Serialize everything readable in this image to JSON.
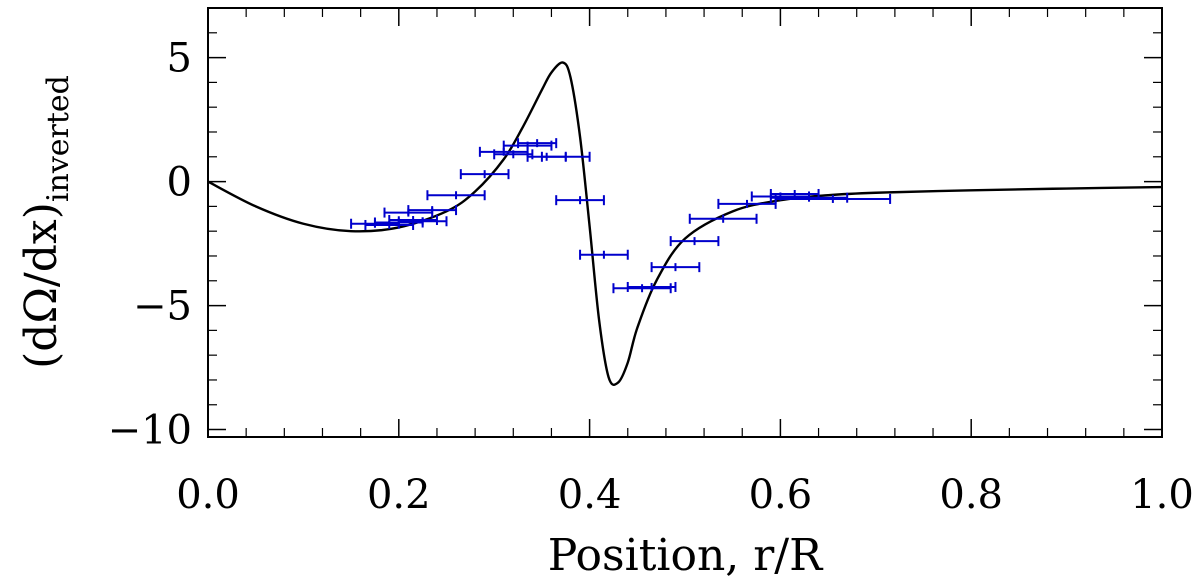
{
  "chart_data": {
    "type": "line",
    "title": "",
    "xlabel": "Position, r/R",
    "ylabel_main": "(dΩ/dx)",
    "ylabel_sub": "inverted",
    "xlim": [
      0.0,
      1.0
    ],
    "ylim": [
      -10.3,
      7.0
    ],
    "x_ticks": [
      0.0,
      0.2,
      0.4,
      0.6,
      0.8,
      1.0
    ],
    "x_tick_labels": [
      "0.0",
      "0.2",
      "0.4",
      "0.6",
      "0.8",
      "1.0"
    ],
    "y_ticks": [
      5,
      0,
      -5,
      -10
    ],
    "y_tick_labels": [
      "5",
      "0",
      "−5",
      "−10"
    ],
    "grid": false,
    "colors": {
      "curve": "#000000",
      "errorbars": "#0000cc",
      "axes": "#000000"
    },
    "series": [
      {
        "type": "line",
        "x": [
          0.0,
          0.05,
          0.1,
          0.15,
          0.2,
          0.25,
          0.28,
          0.31,
          0.33,
          0.35,
          0.36,
          0.372,
          0.38,
          0.39,
          0.4,
          0.41,
          0.42,
          0.43,
          0.44,
          0.45,
          0.47,
          0.5,
          0.55,
          0.6,
          0.65,
          0.7,
          0.8,
          0.9,
          1.0
        ],
        "y": [
          0.0,
          -1.0,
          -1.7,
          -2.0,
          -1.85,
          -1.2,
          -0.4,
          0.9,
          2.2,
          3.7,
          4.4,
          4.8,
          4.2,
          1.8,
          -1.8,
          -5.6,
          -7.9,
          -8.1,
          -7.3,
          -5.9,
          -4.0,
          -2.3,
          -1.2,
          -0.75,
          -0.55,
          -0.45,
          -0.35,
          -0.28,
          -0.22
        ]
      },
      {
        "type": "errorbar",
        "points": [
          {
            "x": 0.175,
            "y": -1.7,
            "xerr": 0.025
          },
          {
            "x": 0.19,
            "y": -1.75,
            "xerr": 0.025
          },
          {
            "x": 0.2,
            "y": -1.65,
            "xerr": 0.025
          },
          {
            "x": 0.215,
            "y": -1.55,
            "xerr": 0.025
          },
          {
            "x": 0.225,
            "y": -1.6,
            "xerr": 0.025
          },
          {
            "x": 0.21,
            "y": -1.25,
            "xerr": 0.025
          },
          {
            "x": 0.235,
            "y": -1.15,
            "xerr": 0.025
          },
          {
            "x": 0.26,
            "y": -0.55,
            "xerr": 0.03
          },
          {
            "x": 0.29,
            "y": 0.3,
            "xerr": 0.025
          },
          {
            "x": 0.31,
            "y": 1.2,
            "xerr": 0.025
          },
          {
            "x": 0.32,
            "y": 1.1,
            "xerr": 0.02
          },
          {
            "x": 0.335,
            "y": 1.45,
            "xerr": 0.025
          },
          {
            "x": 0.345,
            "y": 1.55,
            "xerr": 0.02
          },
          {
            "x": 0.355,
            "y": 1.0,
            "xerr": 0.02
          },
          {
            "x": 0.375,
            "y": 1.0,
            "xerr": 0.025
          },
          {
            "x": 0.39,
            "y": -0.75,
            "xerr": 0.025
          },
          {
            "x": 0.415,
            "y": -2.95,
            "xerr": 0.025
          },
          {
            "x": 0.455,
            "y": -4.3,
            "xerr": 0.03
          },
          {
            "x": 0.465,
            "y": -4.25,
            "xerr": 0.025
          },
          {
            "x": 0.49,
            "y": -3.45,
            "xerr": 0.025
          },
          {
            "x": 0.51,
            "y": -2.4,
            "xerr": 0.025
          },
          {
            "x": 0.54,
            "y": -1.5,
            "xerr": 0.035
          },
          {
            "x": 0.565,
            "y": -0.9,
            "xerr": 0.03
          },
          {
            "x": 0.6,
            "y": -0.6,
            "xerr": 0.03
          },
          {
            "x": 0.615,
            "y": -0.5,
            "xerr": 0.025
          },
          {
            "x": 0.63,
            "y": -0.65,
            "xerr": 0.04
          },
          {
            "x": 0.655,
            "y": -0.7,
            "xerr": 0.06
          }
        ]
      }
    ]
  }
}
